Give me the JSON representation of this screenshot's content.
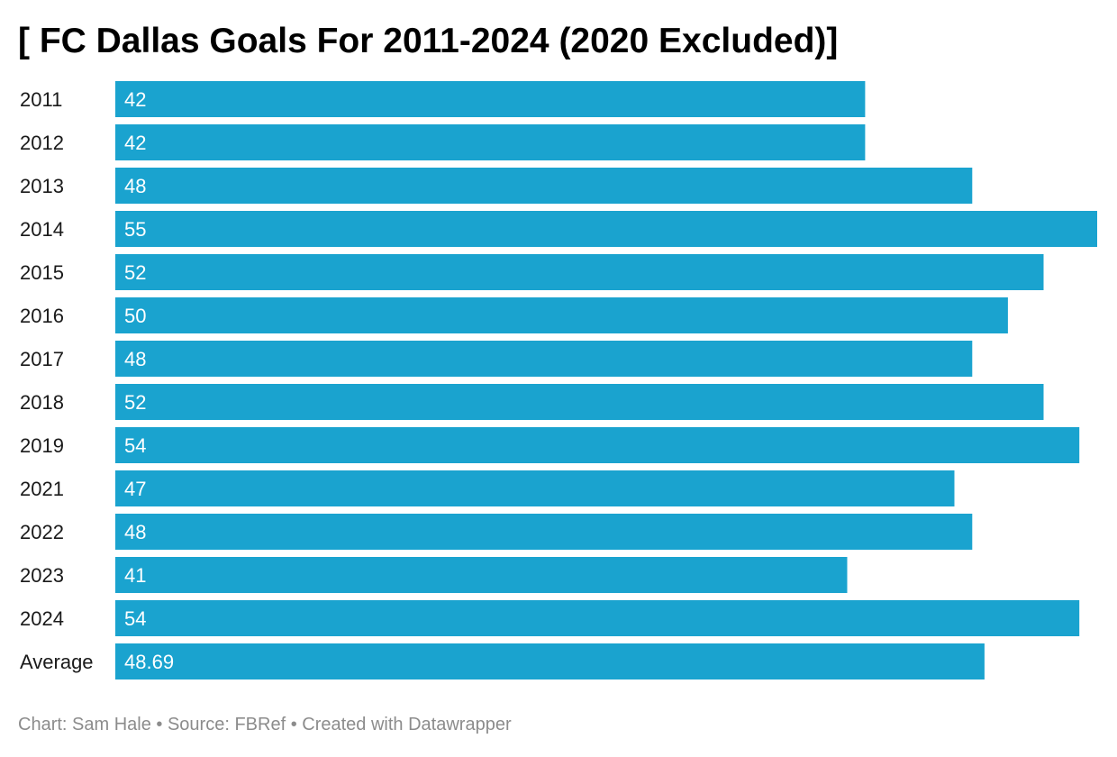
{
  "title": "[ FC Dallas Goals For 2011-2024 (2020 Excluded)]",
  "footer": {
    "chart_by": "Chart: Sam Hale",
    "source": "Source: FBRef",
    "credit": "Created with Datawrapper",
    "separator": " • "
  },
  "colors": {
    "bar": "#1aa3cf",
    "label_inside": "#ffffff",
    "category_text": "#1a1a1a"
  },
  "chart_data": {
    "type": "bar",
    "orientation": "horizontal",
    "categories": [
      "2011",
      "2012",
      "2013",
      "2014",
      "2015",
      "2016",
      "2017",
      "2018",
      "2019",
      "2021",
      "2022",
      "2023",
      "2024",
      "Average"
    ],
    "values": [
      42,
      42,
      48,
      55,
      52,
      50,
      48,
      52,
      54,
      47,
      48,
      41,
      54,
      48.69
    ],
    "value_labels": [
      "42",
      "42",
      "48",
      "55",
      "52",
      "50",
      "48",
      "52",
      "54",
      "47",
      "48",
      "41",
      "54",
      "48.69"
    ],
    "xlim": [
      0,
      55
    ],
    "grid": false,
    "legend": "none"
  }
}
